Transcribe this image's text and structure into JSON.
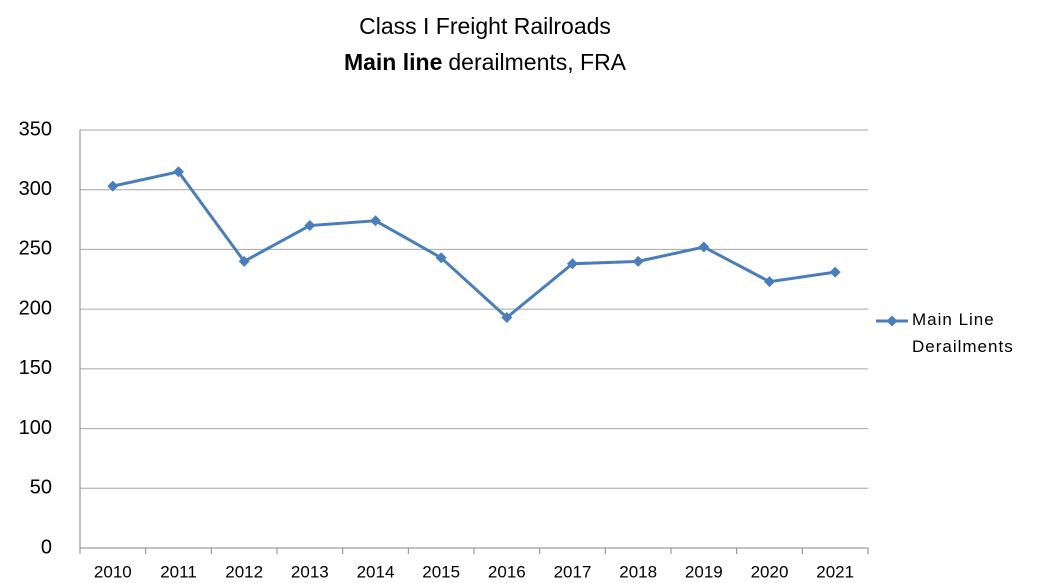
{
  "chart_data": {
    "type": "line",
    "title": "Class I Freight Railroads",
    "subtitle_bold": "Main line",
    "subtitle": "derailments, FRA",
    "categories": [
      "2010",
      "2011",
      "2012",
      "2013",
      "2014",
      "2015",
      "2016",
      "2017",
      "2018",
      "2019",
      "2020",
      "2021"
    ],
    "series": [
      {
        "name": "Main Line Derailments",
        "color": "#4a7ebb",
        "values": [
          303,
          315,
          240,
          270,
          274,
          243,
          193,
          238,
          240,
          252,
          223,
          231
        ]
      }
    ],
    "ylim": [
      0,
      350
    ],
    "yticks": [
      0,
      50,
      100,
      150,
      200,
      250,
      300,
      350
    ],
    "grid": true,
    "legend": "right"
  }
}
